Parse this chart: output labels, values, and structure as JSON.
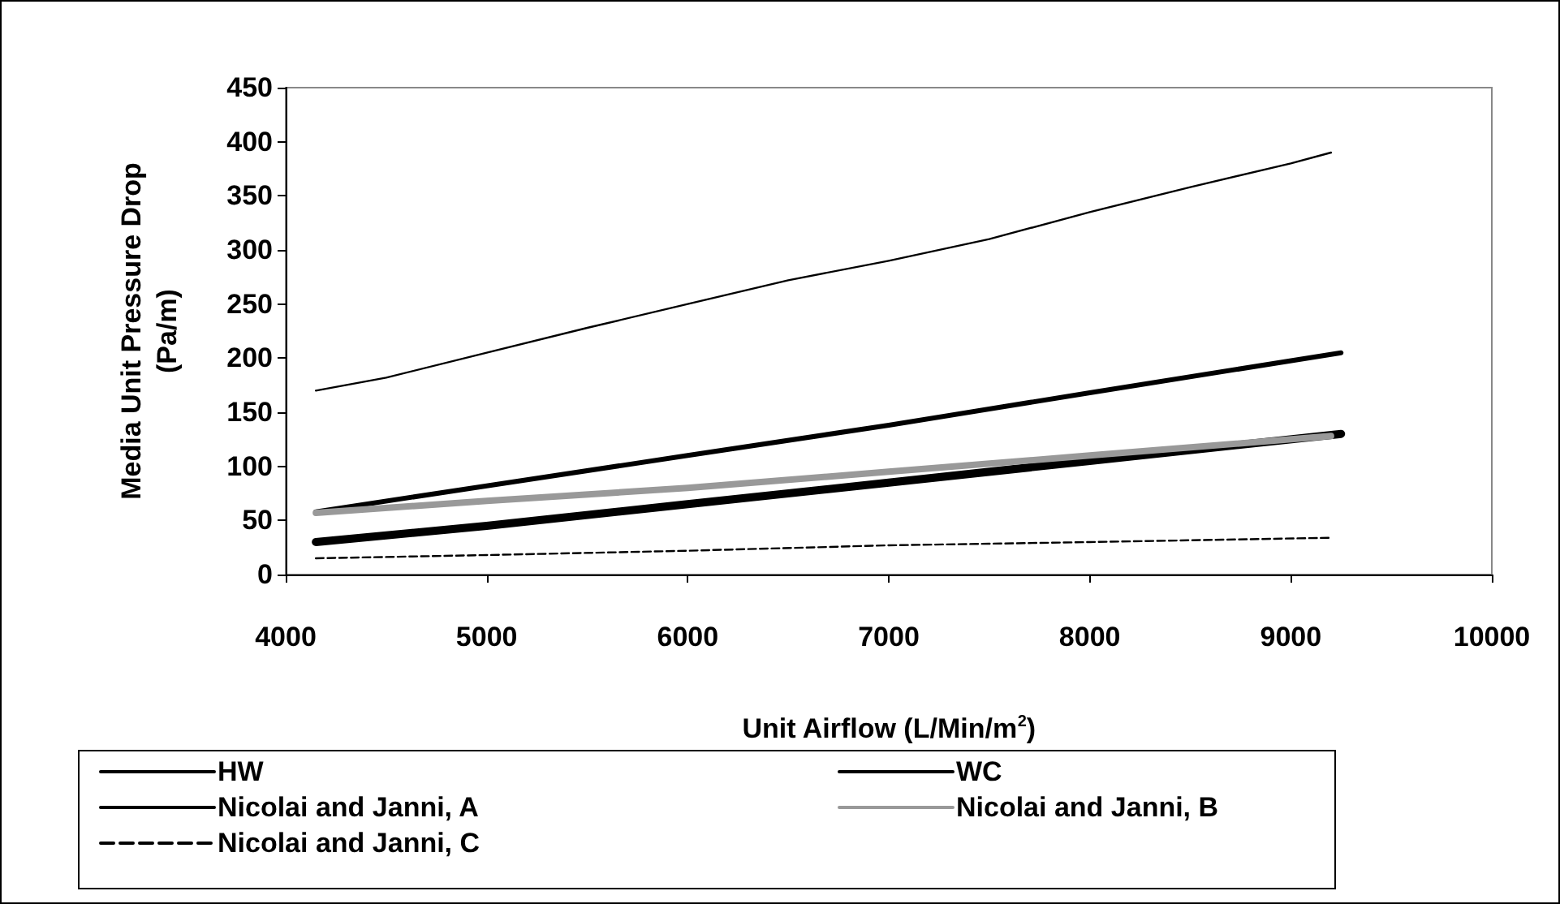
{
  "chart_data": {
    "type": "line",
    "xlabel": "Unit Airflow (L/Min/m$^{2}$)",
    "ylabel": "Media Unit Pressure Drop\n(Pa/m)",
    "xlim": [
      4000,
      10000
    ],
    "xticks": [
      4000,
      5000,
      6000,
      7000,
      8000,
      9000,
      10000
    ],
    "ylim": [
      0,
      450
    ],
    "yticks": [
      0,
      50,
      100,
      150,
      200,
      250,
      300,
      350,
      400,
      450
    ],
    "grid": false,
    "legend": "bottom",
    "marker": "none",
    "series": [
      {
        "name": "HW",
        "color": "#000000",
        "x": [
          4150,
          5000,
          6000,
          7000,
          8000,
          9250
        ],
        "values": [
          30,
          45,
          65,
          85,
          105,
          130
        ]
      },
      {
        "name": "WC",
        "color": "#000000",
        "x": [
          4150,
          5000,
          6000,
          7000,
          8000,
          9250
        ],
        "values": [
          58,
          82,
          110,
          138,
          168,
          205
        ]
      },
      {
        "name": "Nicolai and Janni, A",
        "color": "#000000",
        "x": [
          4150,
          4500,
          5000,
          5500,
          6000,
          6500,
          7000,
          7500,
          8000,
          8500,
          9000,
          9200
        ],
        "values": [
          170,
          182,
          205,
          228,
          250,
          272,
          290,
          310,
          335,
          358,
          380,
          390
        ]
      },
      {
        "name": "Nicolai and Janni, B",
        "color": "#999999",
        "x": [
          4150,
          5000,
          6000,
          7000,
          8000,
          9200
        ],
        "values": [
          57,
          68,
          80,
          95,
          110,
          128
        ]
      },
      {
        "name": "Nicolai and Janni, C",
        "color": "#000000",
        "line_style": "dashed",
        "x": [
          4150,
          5000,
          6000,
          7000,
          8000,
          9200
        ],
        "values": [
          15,
          18,
          22,
          27,
          30,
          34
        ]
      }
    ]
  }
}
